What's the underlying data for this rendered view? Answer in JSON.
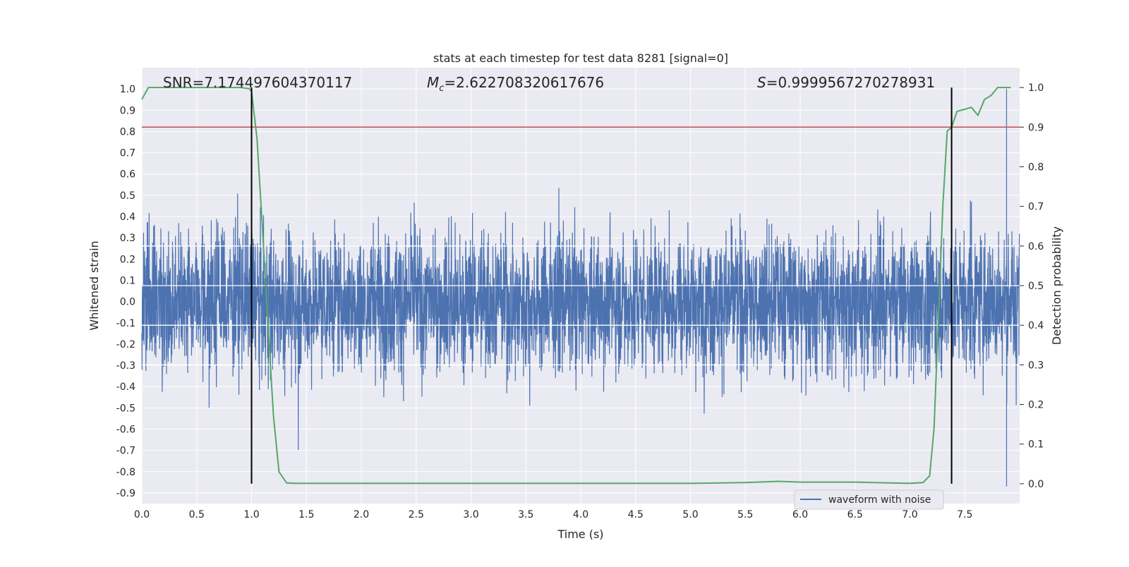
{
  "chart_data": {
    "type": "line",
    "title": "stats at each timestep for test data 8281 [signal=0]",
    "xlabel": "Time (s)",
    "ylabel_left": "Whitened strain",
    "ylabel_right": "Detection probability",
    "xlim": [
      0,
      8.0
    ],
    "ylim_left": [
      -0.95,
      1.1
    ],
    "ylim_right": [
      -0.05,
      1.05
    ],
    "x_ticks": [
      "0.0",
      "0.5",
      "1.0",
      "1.5",
      "2.0",
      "2.5",
      "3.0",
      "3.5",
      "4.0",
      "4.5",
      "5.0",
      "5.5",
      "6.0",
      "6.5",
      "7.0",
      "7.5"
    ],
    "x_tick_values": [
      0,
      0.5,
      1,
      1.5,
      2,
      2.5,
      3,
      3.5,
      4,
      4.5,
      5,
      5.5,
      6,
      6.5,
      7,
      7.5
    ],
    "y_ticks_left": [
      "1.0",
      "0.9",
      "0.8",
      "0.7",
      "0.6",
      "0.5",
      "0.4",
      "0.3",
      "0.2",
      "0.1",
      "0.0",
      "-0.1",
      "-0.2",
      "-0.3",
      "-0.4",
      "-0.5",
      "-0.6",
      "-0.7",
      "-0.8",
      "-0.9"
    ],
    "y_tick_values_left": [
      1.0,
      0.9,
      0.8,
      0.7,
      0.6,
      0.5,
      0.4,
      0.3,
      0.2,
      0.1,
      0.0,
      -0.1,
      -0.2,
      -0.3,
      -0.4,
      -0.5,
      -0.6,
      -0.7,
      -0.8,
      -0.9
    ],
    "y_ticks_right": [
      "1.0",
      "0.9",
      "0.8",
      "0.7",
      "0.6",
      "0.5",
      "0.4",
      "0.3",
      "0.2",
      "0.1",
      "0.0"
    ],
    "y_tick_values_right": [
      1.0,
      0.9,
      0.8,
      0.7,
      0.6,
      0.5,
      0.4,
      0.3,
      0.2,
      0.1,
      0.0
    ],
    "annotations": {
      "snr": "SNR=7.174497604370117",
      "mc_symbol": "M",
      "mc_subscript": "c",
      "mc_value": "=2.622708320617676",
      "s_symbol": "S",
      "s_value": "=0.9999567270278931"
    },
    "legend": {
      "label": "waveform with noise",
      "location": "lower-right"
    },
    "threshold_line": {
      "axis": "right",
      "value": 0.9,
      "color": "#c44e52"
    },
    "vertical_lines": {
      "x": [
        1.0,
        7.38
      ],
      "ymin_right": 0.0,
      "ymax_right": 1.0,
      "color": "#000000"
    },
    "waveform": {
      "name": "waveform with noise",
      "color": "#4c72b0",
      "axis": "left",
      "samples": 4096,
      "duration_s": 8.0,
      "typical_range": [
        -0.33,
        0.33
      ],
      "max_positive": 1.0,
      "max_negative": -0.87,
      "peak_time_s": 7.88
    },
    "probability": {
      "name": "detection probability",
      "color": "#55a868",
      "axis": "right",
      "x": [
        0.0,
        0.06,
        0.12,
        0.5,
        0.9,
        0.98,
        1.0,
        1.05,
        1.1,
        1.15,
        1.2,
        1.25,
        1.32,
        1.4,
        2.0,
        2.5,
        3.0,
        3.5,
        4.0,
        4.5,
        5.0,
        5.3,
        5.5,
        5.7,
        5.8,
        6.0,
        6.5,
        6.8,
        7.0,
        7.12,
        7.18,
        7.22,
        7.26,
        7.3,
        7.34,
        7.38,
        7.43,
        7.5,
        7.56,
        7.62,
        7.68,
        7.74,
        7.8,
        7.86,
        7.92
      ],
      "y": [
        0.97,
        1.0,
        1.0,
        1.0,
        1.0,
        0.997,
        0.99,
        0.87,
        0.64,
        0.4,
        0.17,
        0.03,
        0.002,
        0.001,
        0.001,
        0.001,
        0.001,
        0.001,
        0.001,
        0.001,
        0.001,
        0.002,
        0.003,
        0.005,
        0.006,
        0.004,
        0.004,
        0.002,
        0.001,
        0.003,
        0.02,
        0.14,
        0.42,
        0.7,
        0.89,
        0.9,
        0.94,
        0.945,
        0.95,
        0.93,
        0.97,
        0.98,
        1.0,
        1.0,
        1.0
      ]
    }
  }
}
